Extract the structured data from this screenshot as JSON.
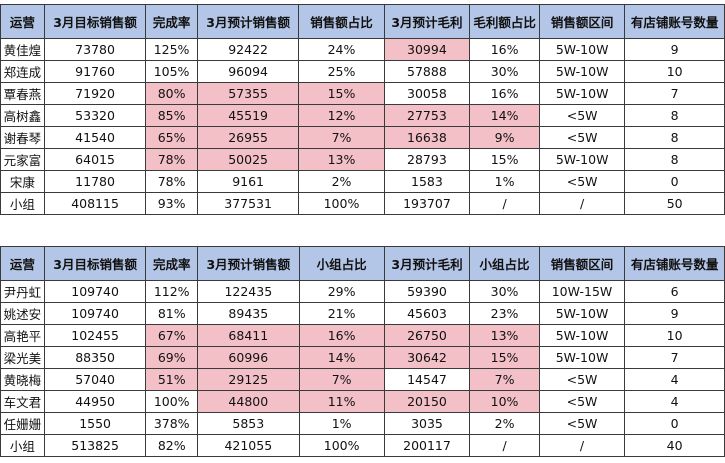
{
  "tables": [
    {
      "headers": [
        "运营",
        "3月目标销售额",
        "完成率",
        "3月预计销售额",
        "销售额占比",
        "3月预计毛利",
        "毛利额占比",
        "销售额区间",
        "有店铺账号数量"
      ],
      "rows": [
        {
          "cells": [
            "黄佳煌",
            "73780",
            "125%",
            "92422",
            "24%",
            "30994",
            "16%",
            "5W-10W",
            "9"
          ],
          "hl": [
            5
          ]
        },
        {
          "cells": [
            "郑连成",
            "91760",
            "105%",
            "96094",
            "25%",
            "57888",
            "30%",
            "5W-10W",
            "10"
          ],
          "hl": []
        },
        {
          "cells": [
            "覃春燕",
            "71920",
            "80%",
            "57355",
            "15%",
            "30058",
            "16%",
            "5W-10W",
            "7"
          ],
          "hl": [
            2,
            3,
            4
          ]
        },
        {
          "cells": [
            "高树鑫",
            "53320",
            "85%",
            "45519",
            "12%",
            "27753",
            "14%",
            "<5W",
            "8"
          ],
          "hl": [
            2,
            3,
            4,
            5,
            6
          ]
        },
        {
          "cells": [
            "谢春琴",
            "41540",
            "65%",
            "26955",
            "7%",
            "16638",
            "9%",
            "<5W",
            "8"
          ],
          "hl": [
            2,
            3,
            4,
            5,
            6
          ]
        },
        {
          "cells": [
            "元家富",
            "64015",
            "78%",
            "50025",
            "13%",
            "28793",
            "15%",
            "5W-10W",
            "8"
          ],
          "hl": [
            2,
            3,
            4
          ]
        },
        {
          "cells": [
            "宋康",
            "11780",
            "78%",
            "9161",
            "2%",
            "1583",
            "1%",
            "<5W",
            "0"
          ],
          "hl": []
        },
        {
          "cells": [
            "小组",
            "408115",
            "93%",
            "377531",
            "100%",
            "193707",
            "/",
            "/",
            "50"
          ],
          "hl": []
        }
      ]
    },
    {
      "headers": [
        "运营",
        "3月目标销售额",
        "完成率",
        "3月预计销售额",
        "小组占比",
        "3月预计毛利",
        "小组占比",
        "销售额区间",
        "有店铺账号数量"
      ],
      "rows": [
        {
          "cells": [
            "尹丹虹",
            "109740",
            "112%",
            "122435",
            "29%",
            "59390",
            "30%",
            "10W-15W",
            "6"
          ],
          "hl": []
        },
        {
          "cells": [
            "姚述安",
            "109740",
            "81%",
            "89435",
            "21%",
            "45603",
            "23%",
            "5W-10W",
            "9"
          ],
          "hl": []
        },
        {
          "cells": [
            "高艳平",
            "102455",
            "67%",
            "68411",
            "16%",
            "26750",
            "13%",
            "5W-10W",
            "10"
          ],
          "hl": [
            2,
            3,
            4,
            5,
            6
          ]
        },
        {
          "cells": [
            "梁光美",
            "88350",
            "69%",
            "60996",
            "14%",
            "30642",
            "15%",
            "5W-10W",
            "7"
          ],
          "hl": [
            2,
            3,
            4,
            5,
            6
          ]
        },
        {
          "cells": [
            "黄晓梅",
            "57040",
            "51%",
            "29125",
            "7%",
            "14547",
            "7%",
            "<5W",
            "4"
          ],
          "hl": [
            2,
            3,
            4,
            6
          ]
        },
        {
          "cells": [
            "车文君",
            "44950",
            "100%",
            "44800",
            "11%",
            "20150",
            "10%",
            "<5W",
            "4"
          ],
          "hl": [
            3,
            4,
            5,
            6
          ]
        },
        {
          "cells": [
            "任姗姗",
            "1550",
            "378%",
            "5853",
            "1%",
            "3035",
            "2%",
            "<5W",
            "0"
          ],
          "hl": []
        },
        {
          "cells": [
            "小组",
            "513825",
            "82%",
            "421055",
            "100%",
            "200117",
            "/",
            "/",
            "40"
          ],
          "hl": []
        }
      ]
    }
  ]
}
